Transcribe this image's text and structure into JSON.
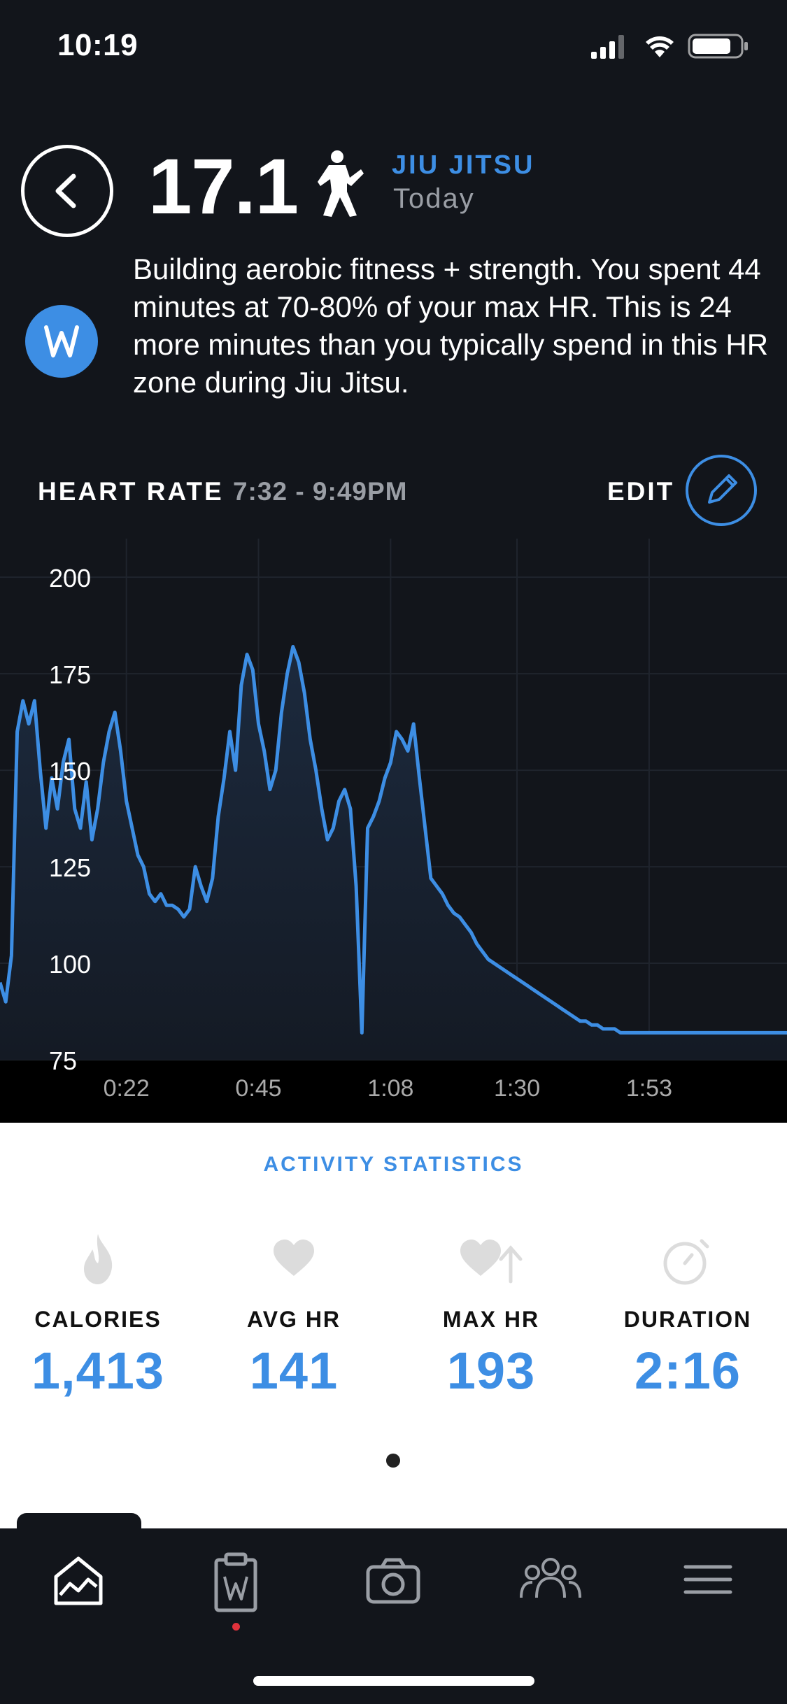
{
  "status_bar": {
    "time": "10:19"
  },
  "header": {
    "strain": "17.1",
    "activity": "JIU JITSU",
    "date": "Today"
  },
  "insight": {
    "text": "Building aerobic fitness + strength. You spent 44 minutes at 70-80% of your max HR. This is 24 more minutes than you typically spend in this HR zone during Jiu Jitsu."
  },
  "heart_rate": {
    "label": "HEART RATE",
    "range": "7:32 - 9:49PM",
    "edit_label": "EDIT"
  },
  "chart_data": {
    "type": "area",
    "title": "",
    "xlabel": "",
    "ylabel": "",
    "ylim": [
      75,
      210
    ],
    "xlim": [
      0,
      137
    ],
    "yticks": [
      200,
      175,
      150,
      125,
      100,
      75
    ],
    "xticks": [
      {
        "v": 22,
        "label": "0:22"
      },
      {
        "v": 45,
        "label": "0:45"
      },
      {
        "v": 68,
        "label": "1:08"
      },
      {
        "v": 90,
        "label": "1:30"
      },
      {
        "v": 113,
        "label": "1:53"
      }
    ],
    "grid": true,
    "line_color": "#3d8ee4",
    "x": [
      0,
      1,
      2,
      3,
      4,
      5,
      6,
      7,
      8,
      9,
      10,
      11,
      12,
      13,
      14,
      15,
      16,
      17,
      18,
      19,
      20,
      21,
      22,
      23,
      24,
      25,
      26,
      27,
      28,
      29,
      30,
      31,
      32,
      33,
      34,
      35,
      36,
      37,
      38,
      39,
      40,
      41,
      42,
      43,
      44,
      45,
      46,
      47,
      48,
      49,
      50,
      51,
      52,
      53,
      54,
      55,
      56,
      57,
      58,
      59,
      60,
      61,
      62,
      63,
      64,
      65,
      66,
      67,
      68,
      69,
      70,
      71,
      72,
      73,
      74,
      75,
      76,
      77,
      78,
      79,
      80,
      81,
      82,
      83,
      84,
      85,
      86,
      87,
      88,
      89,
      90,
      91,
      92,
      93,
      94,
      95,
      96,
      97,
      98,
      99,
      100,
      101,
      102,
      103,
      104,
      105,
      106,
      107,
      108,
      109,
      110,
      111,
      112,
      113,
      114,
      115,
      116,
      117,
      118,
      119,
      120,
      121,
      122,
      123,
      124,
      125,
      126,
      127,
      128,
      129,
      130,
      131,
      132,
      133,
      134,
      135,
      136,
      137
    ],
    "y": [
      95,
      90,
      102,
      160,
      168,
      162,
      168,
      150,
      135,
      148,
      140,
      152,
      158,
      140,
      135,
      147,
      132,
      140,
      152,
      160,
      165,
      155,
      142,
      135,
      128,
      125,
      118,
      116,
      118,
      115,
      115,
      114,
      112,
      114,
      125,
      120,
      116,
      122,
      138,
      148,
      160,
      150,
      172,
      180,
      176,
      162,
      155,
      145,
      150,
      165,
      175,
      182,
      178,
      170,
      158,
      150,
      140,
      132,
      135,
      142,
      145,
      140,
      120,
      82,
      135,
      138,
      142,
      148,
      152,
      160,
      158,
      155,
      162,
      148,
      135,
      122,
      120,
      118,
      115,
      113,
      112,
      110,
      108,
      105,
      103,
      101,
      100,
      99,
      98,
      97,
      96,
      95,
      94,
      93,
      92,
      91,
      90,
      89,
      88,
      87,
      86,
      85,
      85,
      84,
      84,
      83,
      83,
      83,
      82,
      82,
      82,
      82,
      82,
      82,
      82,
      82,
      82,
      82,
      82,
      82,
      82,
      82,
      82,
      82,
      82,
      82,
      82,
      82,
      82,
      82,
      82,
      82,
      82,
      82,
      82,
      82,
      82,
      82
    ]
  },
  "stats": {
    "title": "ACTIVITY STATISTICS",
    "items": [
      {
        "label": "CALORIES",
        "value": "1,413",
        "icon": "flame-icon"
      },
      {
        "label": "AVG HR",
        "value": "141",
        "icon": "heart-icon"
      },
      {
        "label": "MAX HR",
        "value": "193",
        "icon": "heart-up-icon"
      },
      {
        "label": "DURATION",
        "value": "2:16",
        "icon": "stopwatch-icon"
      }
    ]
  },
  "colors": {
    "accent": "#3d8ee4",
    "background": "#12151b",
    "notification": "#e0323c"
  }
}
